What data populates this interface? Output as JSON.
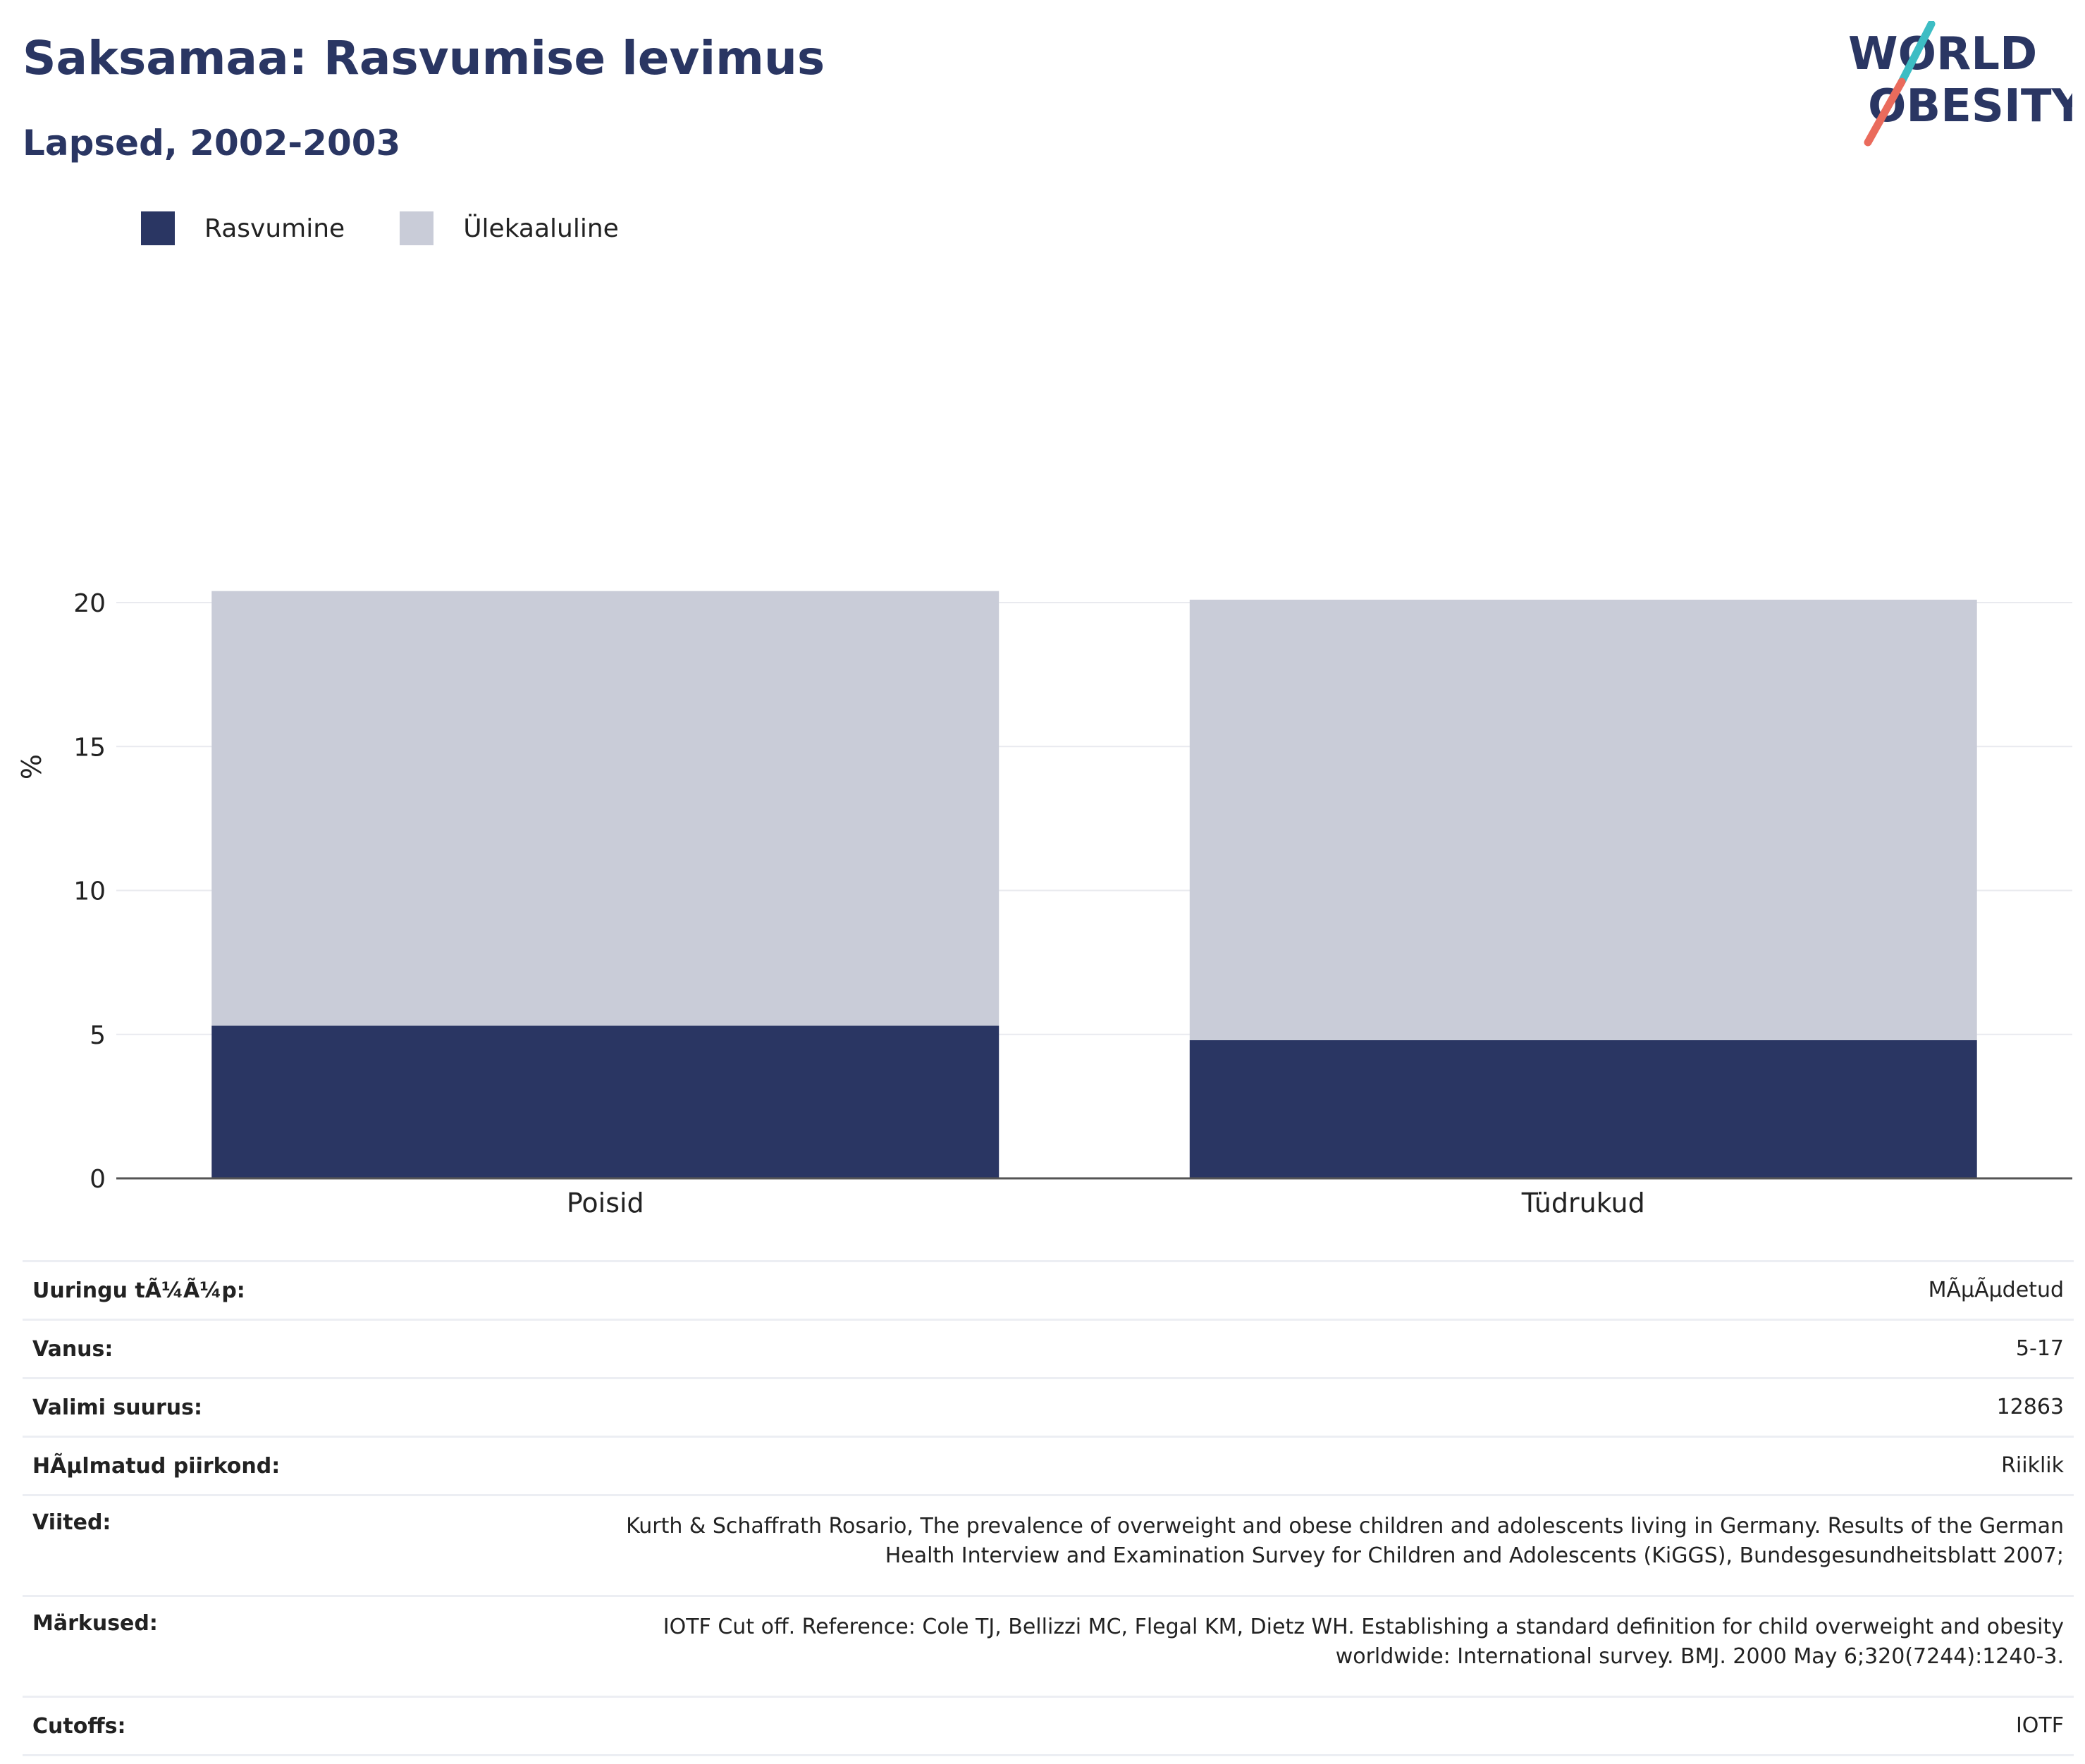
{
  "header": {
    "title": "Saksamaa: Rasvumise levimus",
    "subtitle": "Lapsed, 2002-2003"
  },
  "logo": {
    "line1": "WORLD",
    "line2": "OBESITY",
    "colors": {
      "text": "#2a3663",
      "slash_top": "#3dbdc4",
      "slash_bottom": "#ea6b5c"
    }
  },
  "legend": [
    {
      "label": "Rasvumine",
      "color": "#2a3663"
    },
    {
      "label": "Ülekaaluline",
      "color": "#c9ccd8"
    }
  ],
  "chart_data": {
    "type": "bar",
    "stacked": true,
    "categories": [
      "Poisid",
      "Tüdrukud"
    ],
    "series": [
      {
        "name": "Rasvumine",
        "color": "#2a3663",
        "values": [
          5.3,
          4.8
        ]
      },
      {
        "name": "Ülekaaluline",
        "color": "#c9ccd8",
        "values": [
          15.1,
          15.3
        ]
      }
    ],
    "ylabel": "%",
    "ylim": [
      0,
      22.5
    ],
    "yticks": [
      0,
      5,
      10,
      15,
      20
    ],
    "grid": true,
    "legend_position": "top-left"
  },
  "info": {
    "rows": [
      {
        "label": "Uuringu tÃ¼Ã¼p:",
        "value": [
          "MÃµÃµdetud"
        ]
      },
      {
        "label": "Vanus:",
        "value": [
          "5-17"
        ]
      },
      {
        "label": "Valimi suurus:",
        "value": [
          "12863"
        ]
      },
      {
        "label": "HÃµlmatud piirkond:",
        "value": [
          "Riiklik"
        ]
      },
      {
        "label": "Viited:",
        "value": [
          "Kurth & Schaffrath Rosario, The prevalence of overweight and obese children and adolescents living in Germany. Results of the German",
          "Health Interview and Examination Survey for Children and Adolescents (KiGGS), Bundesgesundheitsblatt 2007;"
        ]
      },
      {
        "label": "Märkused:",
        "value": [
          "IOTF Cut off. Reference: Cole TJ, Bellizzi MC, Flegal KM, Dietz WH. Establishing a standard definition for child overweight and obesity",
          "worldwide: International survey. BMJ. 2000 May 6;320(7244):1240-3."
        ]
      },
      {
        "label": "Cutoffs:",
        "value": [
          "IOTF"
        ]
      }
    ]
  }
}
